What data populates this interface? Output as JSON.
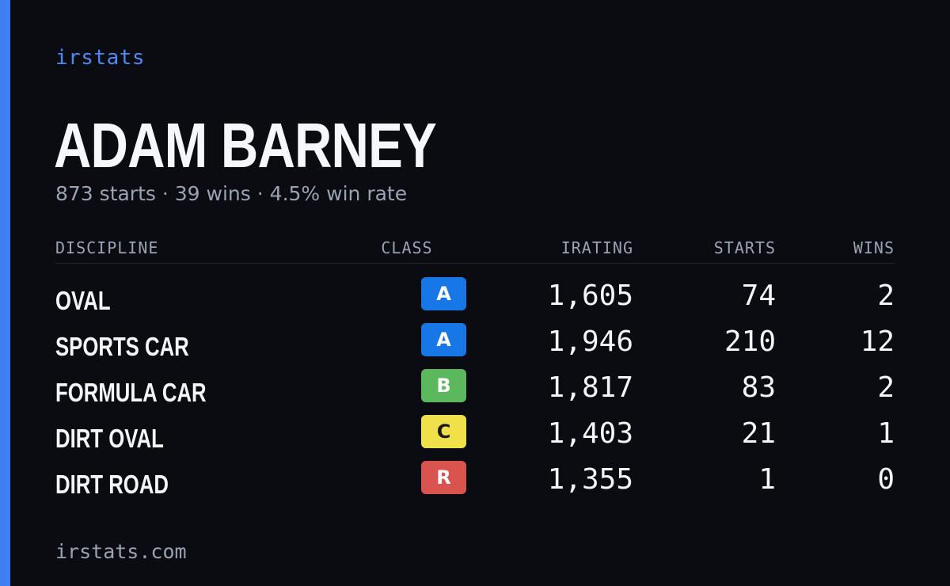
{
  "brand": "irstats",
  "player": {
    "name": "ADAM BARNEY",
    "starts_text": "873 starts",
    "wins_text": "39 wins",
    "win_rate_text": "4.5% win rate",
    "separator": "·"
  },
  "table": {
    "headers": {
      "discipline": "DISCIPLINE",
      "class": "CLASS",
      "irating": "IRATING",
      "starts": "STARTS",
      "wins": "WINS"
    },
    "rows": [
      {
        "discipline": "OVAL",
        "class": "A",
        "class_bg": "#1877e6",
        "class_fg": "#ffffff",
        "irating": "1,605",
        "starts": "74",
        "wins": "2"
      },
      {
        "discipline": "SPORTS CAR",
        "class": "A",
        "class_bg": "#1877e6",
        "class_fg": "#ffffff",
        "irating": "1,946",
        "starts": "210",
        "wins": "12"
      },
      {
        "discipline": "FORMULA CAR",
        "class": "B",
        "class_bg": "#5cb85c",
        "class_fg": "#ffffff",
        "irating": "1,817",
        "starts": "83",
        "wins": "2"
      },
      {
        "discipline": "DIRT OVAL",
        "class": "C",
        "class_bg": "#f0e14a",
        "class_fg": "#1a1a1a",
        "irating": "1,403",
        "starts": "21",
        "wins": "1"
      },
      {
        "discipline": "DIRT ROAD",
        "class": "R",
        "class_bg": "#d9534f",
        "class_fg": "#ffffff",
        "irating": "1,355",
        "starts": "1",
        "wins": "0"
      }
    ]
  },
  "footer": {
    "url": "irstats.com"
  },
  "colors": {
    "accent": "#3e80f1",
    "background": "#0a0c12"
  }
}
